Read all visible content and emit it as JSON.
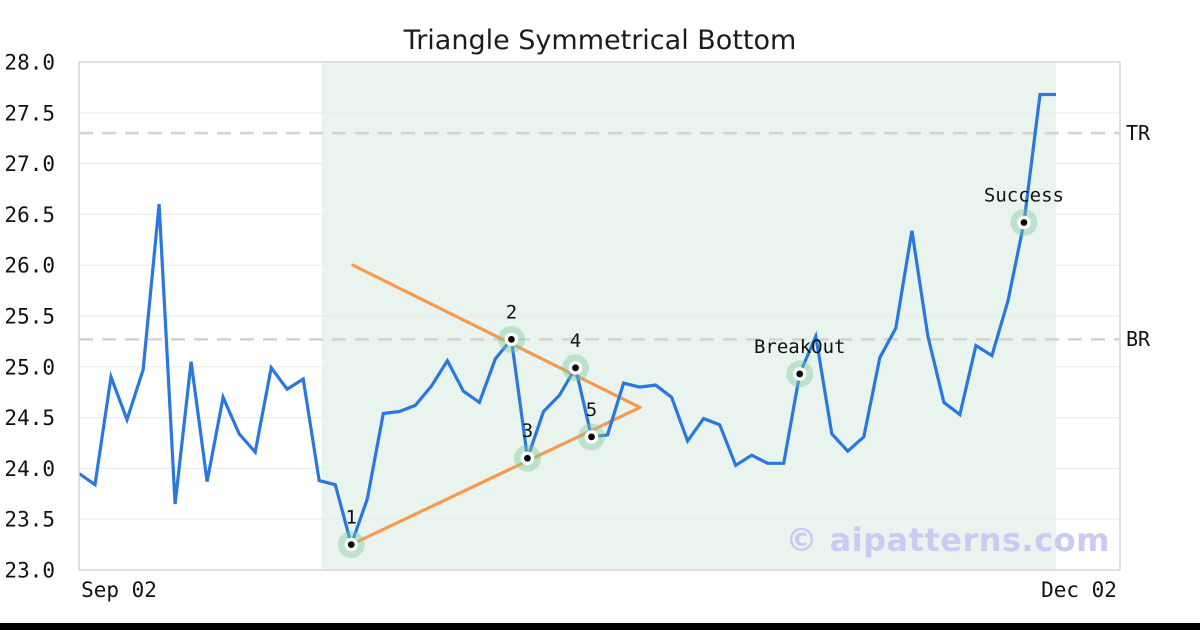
{
  "chart_data": {
    "type": "line",
    "title": "Triangle Symmetrical Bottom",
    "x_tick_labels": [
      "Sep 02",
      "Dec 02"
    ],
    "ylim": [
      23.0,
      28.0
    ],
    "y_ticks": [
      23.0,
      23.5,
      24.0,
      24.5,
      25.0,
      25.5,
      26.0,
      26.5,
      27.0,
      27.5,
      28.0
    ],
    "grid": "horizontal",
    "legend": "none",
    "watermark": "© aipatterns.com",
    "colors": {
      "price_line": "#2878e0",
      "trendline": "#f79a4d",
      "pattern_region": "#e9f4ef",
      "marker_halo": "#7fc79d",
      "dashed_level": "#d3d3d3",
      "gridline": "#ececec",
      "spine": "#d6d6d6",
      "text": "#111111",
      "watermark_color": "#cbcbf1",
      "footer_bar": "#000000"
    },
    "series": [
      {
        "name": "price",
        "values": [
          23.95,
          23.84,
          24.9,
          24.48,
          24.97,
          26.6,
          23.65,
          25.05,
          23.87,
          24.7,
          24.34,
          24.16,
          24.99,
          24.78,
          24.88,
          23.88,
          23.84,
          23.25,
          23.7,
          24.54,
          24.56,
          24.62,
          24.81,
          25.06,
          24.76,
          24.65,
          25.08,
          25.27,
          24.1,
          24.56,
          24.72,
          24.99,
          24.31,
          24.33,
          24.84,
          24.8,
          24.82,
          24.7,
          24.27,
          24.49,
          24.43,
          24.03,
          24.13,
          24.05,
          24.05,
          24.93,
          25.3,
          24.34,
          24.17,
          24.31,
          25.09,
          25.38,
          26.34,
          25.3,
          24.65,
          24.53,
          25.21,
          25.11,
          25.65,
          26.42,
          27.68,
          27.68
        ]
      }
    ],
    "levels": [
      {
        "label": "TR",
        "value": 27.3
      },
      {
        "label": "BR",
        "value": 25.27
      }
    ],
    "trendlines": [
      {
        "name": "upper",
        "from_day": 17.1,
        "from_value": 26.0,
        "to_day": 35.03,
        "to_value": 24.6
      },
      {
        "name": "lower",
        "from_day": 17.0,
        "from_value": 23.25,
        "to_day": 35.03,
        "to_value": 24.6
      }
    ],
    "pattern_region": {
      "from_day": 15.17,
      "to_day": 61
    },
    "pattern_points": [
      {
        "label": "1",
        "day": 17,
        "value": 23.25
      },
      {
        "label": "2",
        "day": 27,
        "value": 25.27
      },
      {
        "label": "3",
        "day": 28,
        "value": 24.1
      },
      {
        "label": "4",
        "day": 31,
        "value": 24.99
      },
      {
        "label": "5",
        "day": 32,
        "value": 24.31
      },
      {
        "label": "BreakOut",
        "day": 45,
        "value": 24.93
      },
      {
        "label": "Success",
        "day": 59,
        "value": 26.42
      }
    ]
  }
}
